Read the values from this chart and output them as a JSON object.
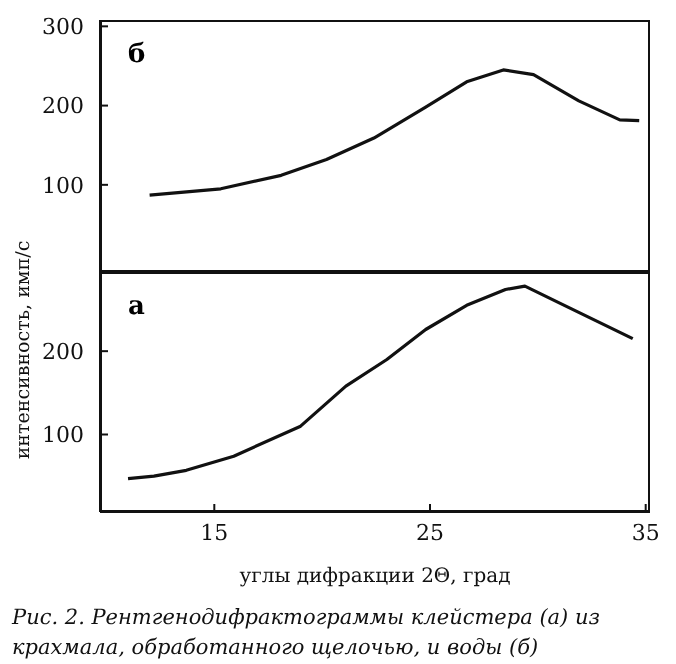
{
  "chart_data": [
    {
      "type": "line",
      "title": "б",
      "xlim": [
        9.7,
        35.2
      ],
      "ylim": [
        -10,
        308
      ],
      "yticks": [
        100,
        200,
        300
      ],
      "tick_labels": "y",
      "grid": false,
      "legend": false,
      "series": [
        {
          "color": "#111111",
          "x": [
            12.0,
            15.3,
            18.1,
            20.2,
            22.4,
            24.8,
            26.7,
            28.4,
            29.8,
            31.9,
            33.8,
            34.7
          ],
          "values": [
            87,
            95,
            112,
            132,
            159,
            198,
            230,
            245,
            239,
            206,
            182,
            181
          ]
        }
      ]
    },
    {
      "type": "line",
      "title": "а",
      "xlabel": "углы дифракции 2Θ, град",
      "ylabel": "интенсивность, имп/с",
      "xlim": [
        9.7,
        35.2
      ],
      "xticks": [
        15,
        25,
        35
      ],
      "ylim": [
        7,
        295
      ],
      "yticks": [
        100,
        200
      ],
      "grid": false,
      "legend": false,
      "annotations": [
        "Рис. 2. Рентгенодифрактограммы клейстера (а) из крахмала, обработанного щелочью, и воды (б)"
      ],
      "series": [
        {
          "color": "#111111",
          "x": [
            11.0,
            12.2,
            13.7,
            15.9,
            19.0,
            21.1,
            23.0,
            24.8,
            26.7,
            28.5,
            29.4,
            31.3,
            34.4
          ],
          "values": [
            47,
            50,
            57,
            74,
            110,
            158,
            190,
            226,
            255,
            274,
            278,
            254,
            215
          ]
        }
      ]
    }
  ]
}
